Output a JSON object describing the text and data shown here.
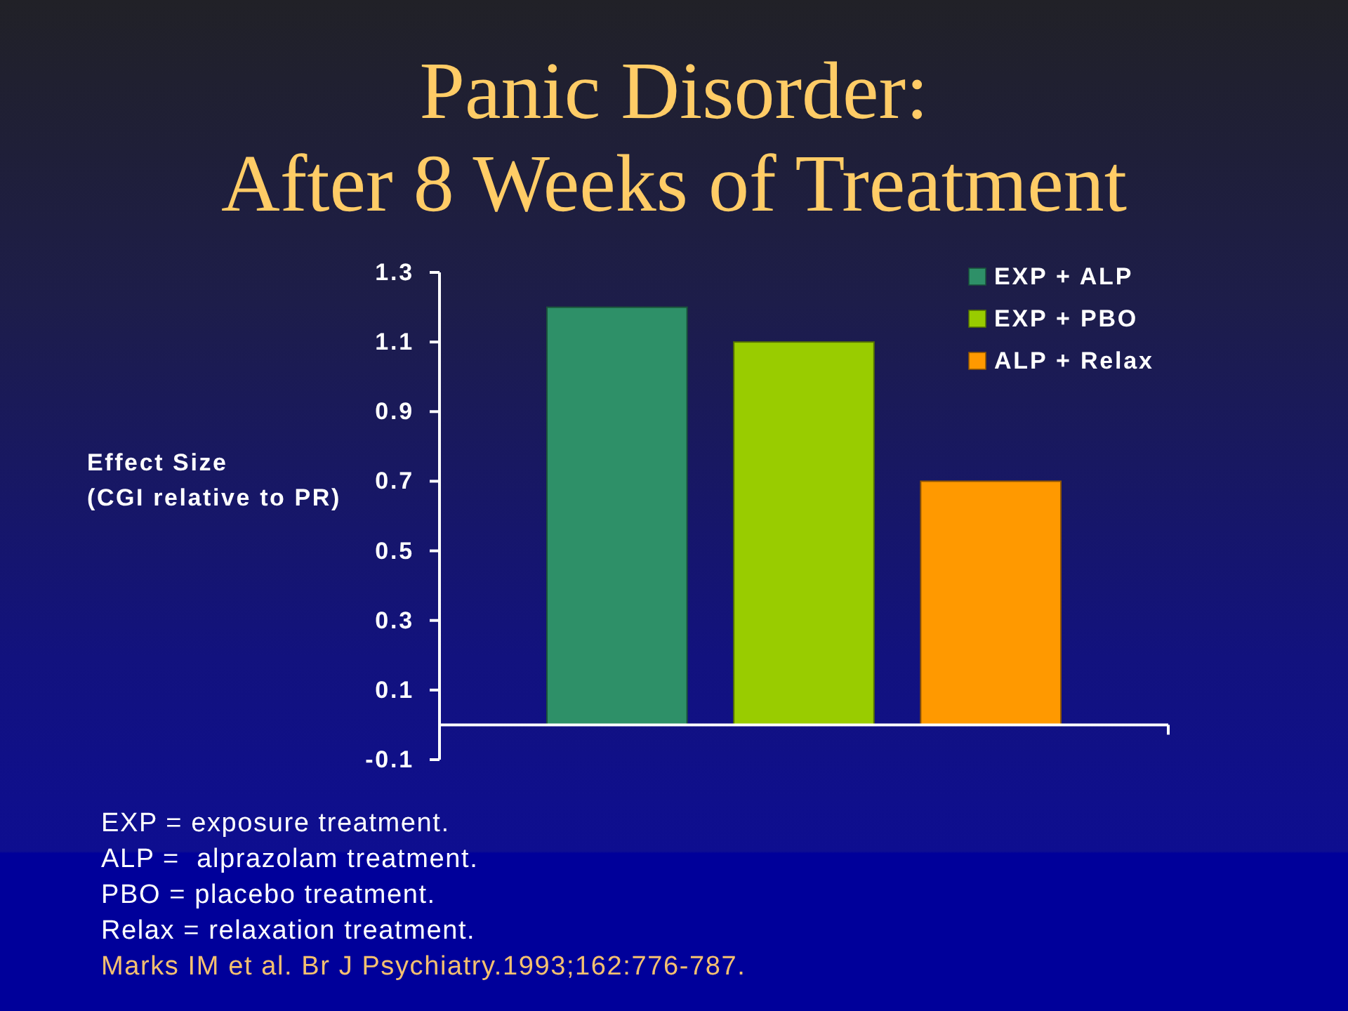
{
  "chart_data": {
    "type": "bar",
    "title": "Panic Disorder:\nAfter 8 Weeks of Treatment",
    "ylabel": "Effect Size\n(CGI relative to PR)",
    "categories": [
      null
    ],
    "series": [
      {
        "name": "EXP + ALP",
        "color": "#2e9068",
        "values": [
          1.2
        ]
      },
      {
        "name": "EXP + PBO",
        "color": "#99cc00",
        "values": [
          1.1
        ]
      },
      {
        "name": "ALP + Relax",
        "color": "#ff9900",
        "values": [
          0.7
        ]
      }
    ],
    "ylim": [
      -0.1,
      1.3
    ],
    "yticks": [
      -0.1,
      0.1,
      0.3,
      0.5,
      0.7,
      0.9,
      1.1,
      1.3
    ],
    "tick_labels": "y",
    "legend": "top right",
    "annotations": [
      "EXP = exposure treatment.",
      "ALP =  alprazolam treatment.",
      "PBO = placebo treatment.",
      "Relax = relaxation treatment.",
      "Marks IM et al. Br J Psychiatry.1993;162:776-787."
    ]
  }
}
